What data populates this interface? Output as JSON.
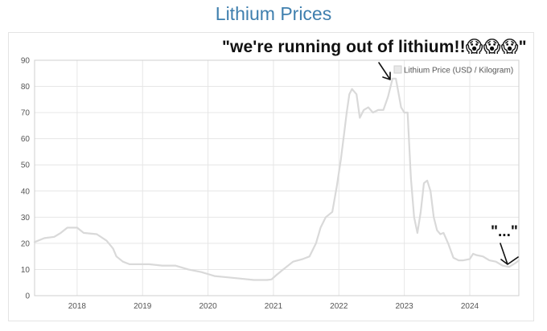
{
  "page_title": "Lithium Prices",
  "annotations": {
    "main": "\"we're running out of lithium!!😱😱😱\"",
    "ellipsis": "\"...\""
  },
  "colors": {
    "title": "#3f7fae",
    "line": "#d9d9d9",
    "grid": "#e6e6e6"
  },
  "chart_data": {
    "type": "line",
    "title": "Lithium Prices",
    "xlabel": "",
    "ylabel": "",
    "ylim": [
      0,
      90
    ],
    "xlim": [
      2017.35,
      2024.75
    ],
    "y_ticks": [
      0,
      10,
      20,
      30,
      40,
      50,
      60,
      70,
      80,
      90
    ],
    "x_ticks": [
      2018,
      2019,
      2020,
      2021,
      2022,
      2023,
      2024
    ],
    "grid": true,
    "legend": {
      "position": "top-right",
      "entries": [
        "Lithium Price (USD / Kilogram)"
      ]
    },
    "series": [
      {
        "name": "Lithium Price (USD / Kilogram)",
        "x": [
          2017.35,
          2017.5,
          2017.65,
          2017.75,
          2017.85,
          2018.0,
          2018.1,
          2018.3,
          2018.45,
          2018.55,
          2018.6,
          2018.7,
          2018.8,
          2018.95,
          2019.1,
          2019.3,
          2019.5,
          2019.7,
          2019.9,
          2020.1,
          2020.3,
          2020.5,
          2020.7,
          2020.9,
          2020.97,
          2021.05,
          2021.15,
          2021.3,
          2021.45,
          2021.55,
          2021.65,
          2021.72,
          2021.8,
          2021.9,
          2021.97,
          2022.03,
          2022.08,
          2022.12,
          2022.16,
          2022.2,
          2022.27,
          2022.32,
          2022.38,
          2022.45,
          2022.52,
          2022.6,
          2022.68,
          2022.75,
          2022.82,
          2022.87,
          2022.9,
          2022.95,
          2023.0,
          2023.05,
          2023.1,
          2023.15,
          2023.2,
          2023.25,
          2023.3,
          2023.35,
          2023.4,
          2023.45,
          2023.5,
          2023.55,
          2023.6,
          2023.67,
          2023.75,
          2023.83,
          2023.9,
          2024.0,
          2024.05,
          2024.1,
          2024.2,
          2024.3,
          2024.4,
          2024.5,
          2024.6,
          2024.7,
          2024.75
        ],
        "values": [
          20.5,
          22,
          22.5,
          24,
          26,
          26,
          24,
          23.5,
          21,
          18,
          15,
          13,
          12,
          12,
          12,
          11.5,
          11.5,
          10,
          9,
          7.5,
          7,
          6.5,
          6,
          6,
          6.2,
          8,
          10,
          13,
          14,
          15,
          20,
          26,
          30,
          32,
          42,
          52,
          62,
          70,
          77,
          79,
          77,
          68,
          71,
          72,
          70,
          71,
          71,
          76,
          83,
          83,
          79,
          72,
          70,
          70,
          45,
          30,
          24,
          32,
          43,
          44,
          40,
          30,
          25,
          23.5,
          24,
          20,
          14.5,
          13.5,
          13.5,
          14,
          16,
          15.5,
          15,
          13.5,
          13,
          11.5,
          11,
          12.5,
          13.5
        ]
      }
    ]
  }
}
